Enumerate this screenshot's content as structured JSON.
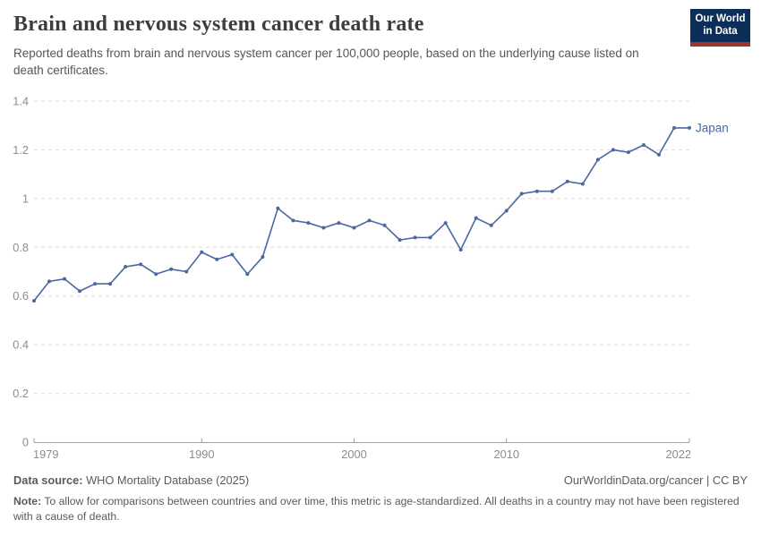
{
  "header": {
    "title": "Brain and nervous system cancer death rate",
    "subtitle": "Reported deaths from brain and nervous system cancer per 100,000 people, based on the underlying cause listed on death certificates.",
    "logo": {
      "line1": "Our World",
      "line2": "in Data"
    }
  },
  "chart_data": {
    "type": "line",
    "title": "Brain and nervous system cancer death rate",
    "xlabel": "",
    "ylabel": "",
    "xlim": [
      1979,
      2022
    ],
    "ylim": [
      0,
      1.4
    ],
    "x_ticks": [
      1979,
      1990,
      2000,
      2010,
      2022
    ],
    "y_ticks": [
      0,
      0.2,
      0.4,
      0.6,
      0.8,
      1,
      1.2,
      1.4
    ],
    "grid": "horizontal-dashed",
    "legend_position": "end-of-line-label",
    "x": [
      1979,
      1980,
      1981,
      1982,
      1983,
      1984,
      1985,
      1986,
      1987,
      1988,
      1989,
      1990,
      1991,
      1992,
      1993,
      1994,
      1995,
      1996,
      1997,
      1998,
      1999,
      2000,
      2001,
      2002,
      2003,
      2004,
      2005,
      2006,
      2007,
      2008,
      2009,
      2010,
      2011,
      2012,
      2013,
      2014,
      2015,
      2016,
      2017,
      2018,
      2019,
      2020,
      2021,
      2022
    ],
    "series": [
      {
        "name": "Japan",
        "values": [
          0.58,
          0.66,
          0.67,
          0.62,
          0.65,
          0.65,
          0.72,
          0.73,
          0.69,
          0.71,
          0.7,
          0.78,
          0.75,
          0.77,
          0.69,
          0.76,
          0.96,
          0.91,
          0.9,
          0.88,
          0.9,
          0.88,
          0.91,
          0.89,
          0.83,
          0.84,
          0.84,
          0.9,
          0.79,
          0.92,
          0.89,
          0.95,
          1.02,
          1.03,
          1.03,
          1.07,
          1.06,
          1.16,
          1.2,
          1.19,
          1.22,
          1.18,
          1.29,
          1.29
        ]
      }
    ]
  },
  "colors": {
    "line": "#4a69a2",
    "grid": "#dedede",
    "axis": "#a1a1a1",
    "tick_text": "#8c8c8c",
    "logo_bg": "#0d2e59",
    "logo_accent": "#a0342b"
  },
  "footer": {
    "datasource_label": "Data source:",
    "datasource_value": " WHO Mortality Database (2025)",
    "attribution": "OurWorldinData.org/cancer | CC BY",
    "note_label": "Note:",
    "note_value": " To allow for comparisons between countries and over time, this metric is age-standardized. All deaths in a country may not have been registered with a cause of death."
  }
}
